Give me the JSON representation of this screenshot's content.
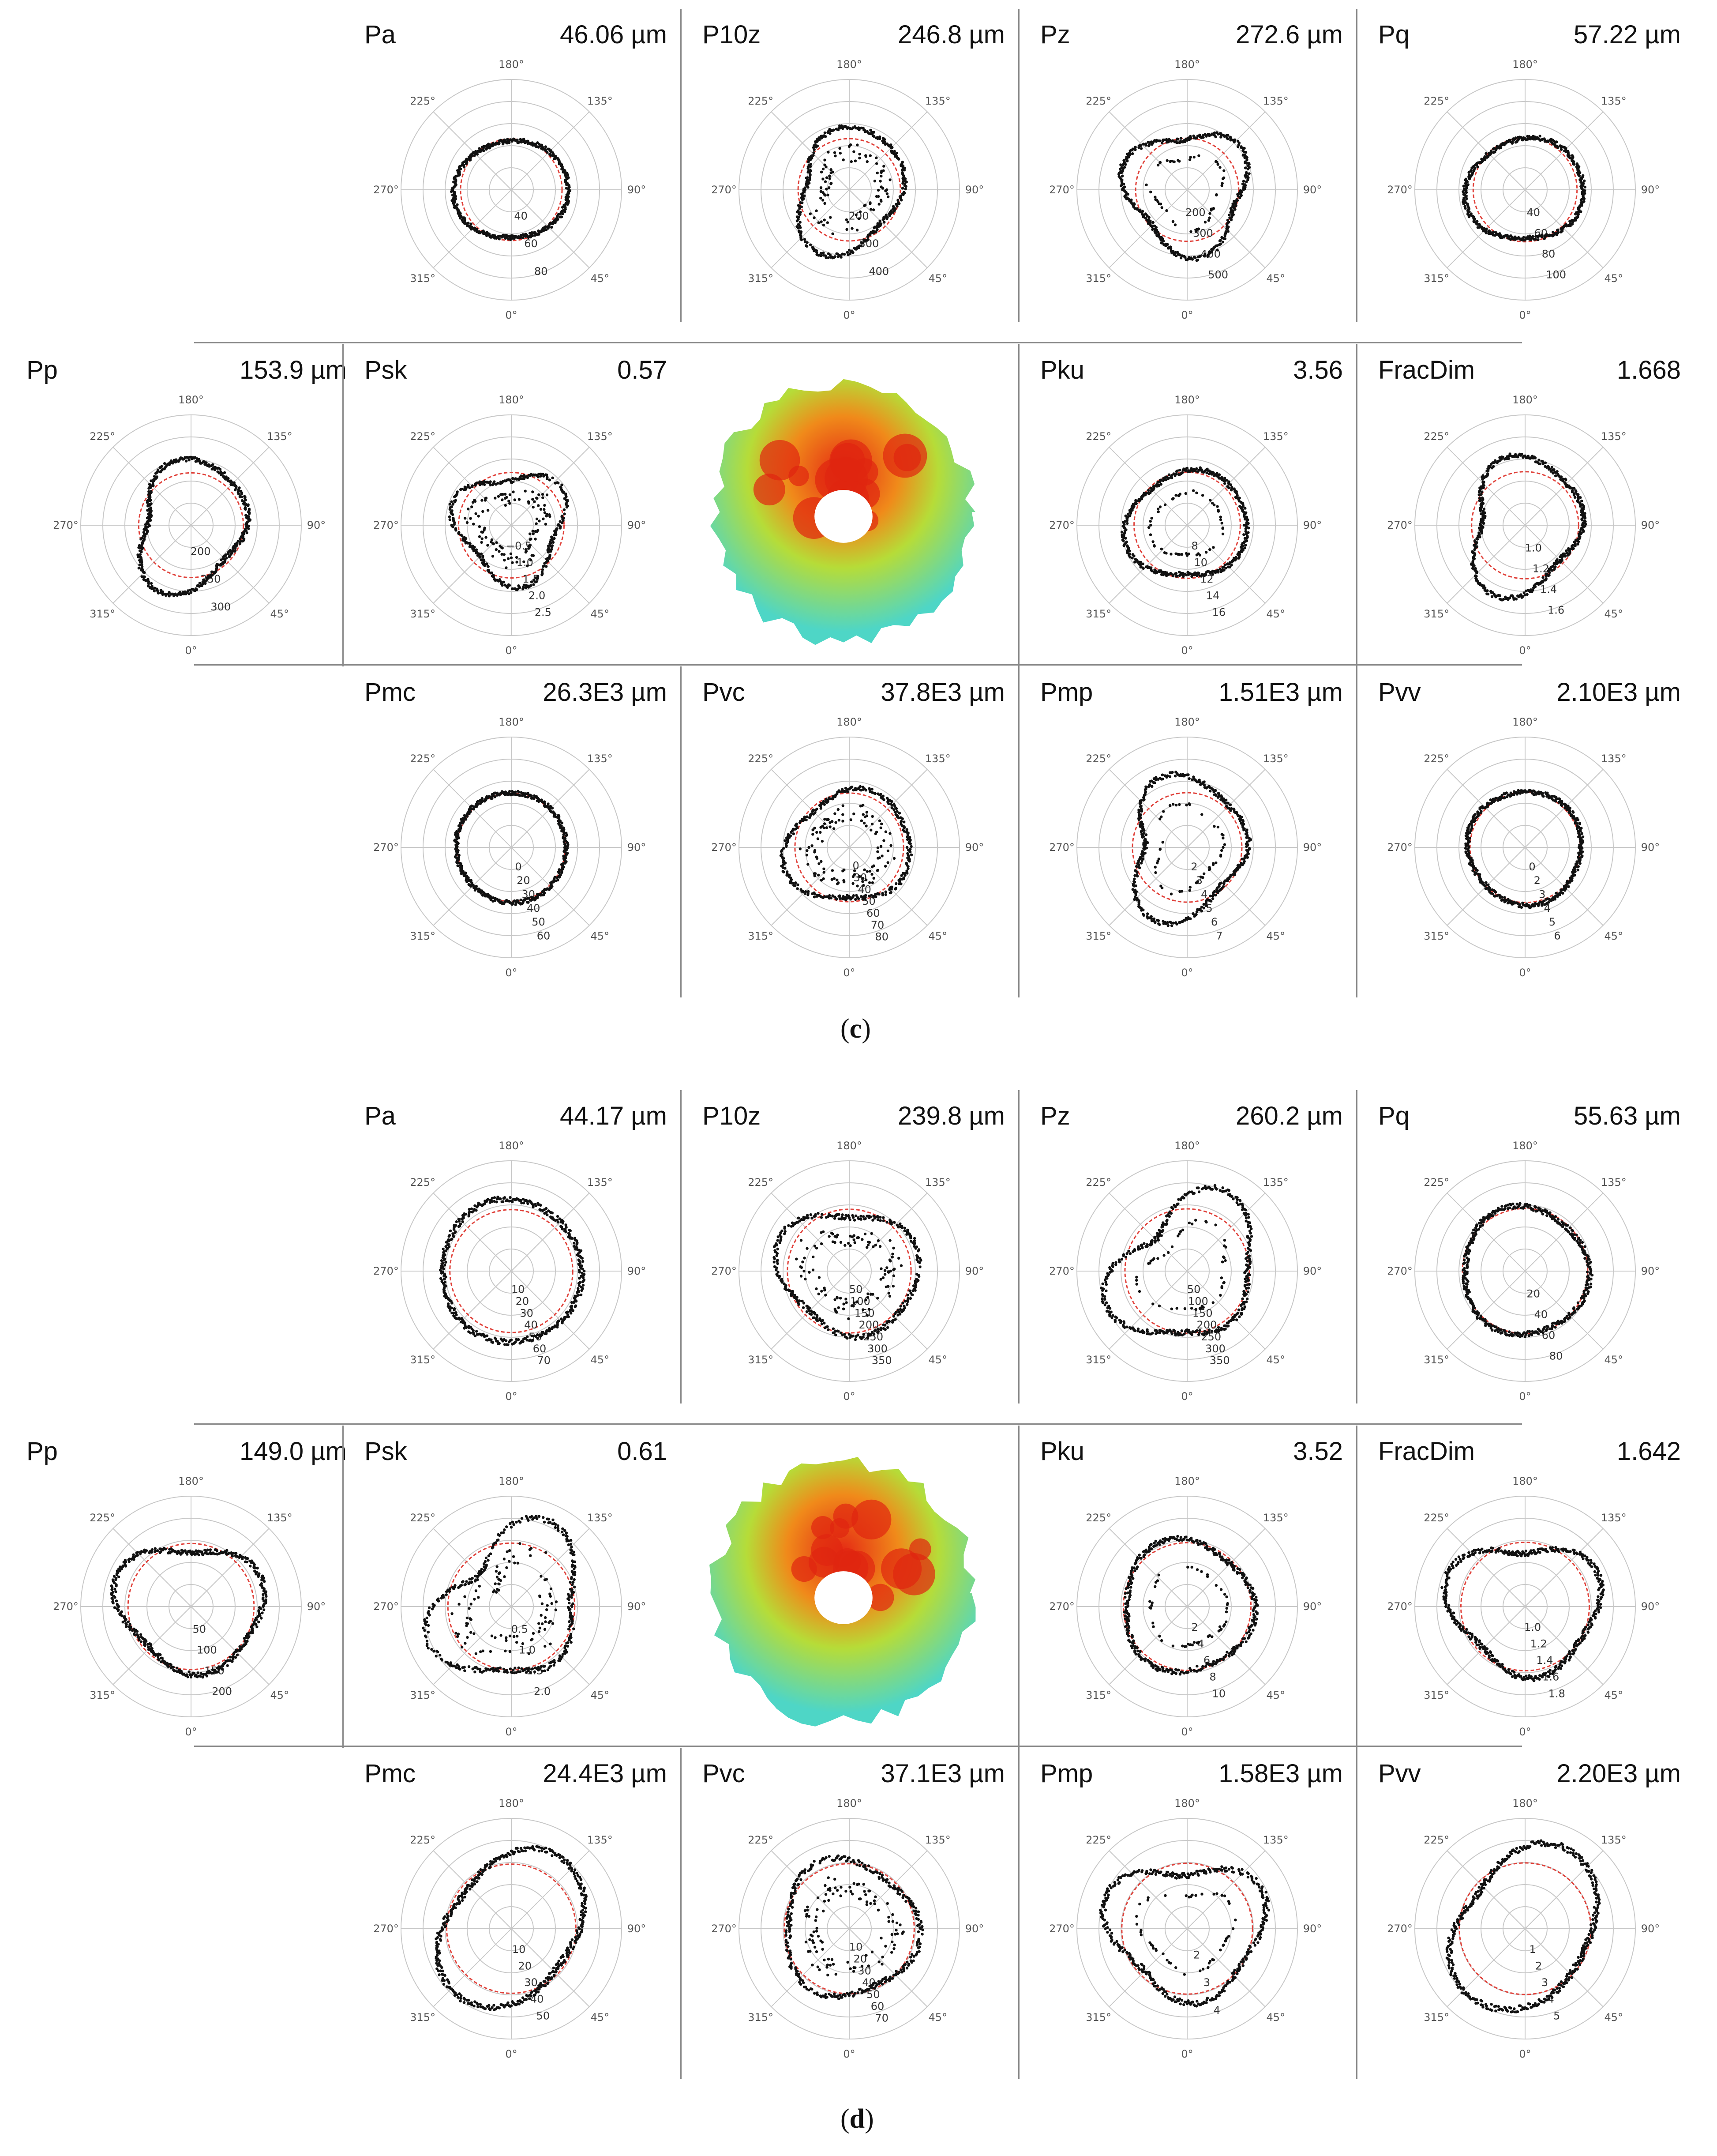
{
  "panels": [
    {
      "id": "c",
      "caption_letter": "c",
      "cells": [
        {
          "name": "Pa",
          "value": "46.06 µm",
          "rings": [
            "40",
            "60",
            "80"
          ]
        },
        {
          "name": "P10z",
          "value": "246.8 µm",
          "rings": [
            "200",
            "300",
            "400"
          ]
        },
        {
          "name": "Pz",
          "value": "272.6 µm",
          "rings": [
            "200",
            "300",
            "400",
            "500"
          ]
        },
        {
          "name": "Pq",
          "value": "57.22 µm",
          "rings": [
            "40",
            "60",
            "80",
            "100"
          ]
        },
        {
          "name": "Pp",
          "value": "153.9 µm",
          "rings": [
            "200",
            "250",
            "300"
          ]
        },
        {
          "name": "Psk",
          "value": "0.57",
          "rings": [
            "−0.5",
            "1.0",
            "1.5",
            "2.0",
            "2.5"
          ]
        },
        {
          "name": "Pku",
          "value": "3.56",
          "rings": [
            "8",
            "10",
            "12",
            "14",
            "16"
          ]
        },
        {
          "name": "FracDim",
          "value": "1.668",
          "rings": [
            "1.0",
            "1.2",
            "1.4",
            "1.6"
          ]
        },
        {
          "name": "Pmc",
          "value": "26.3E3 µm",
          "rings": [
            "0",
            "20",
            "30",
            "40",
            "50",
            "60"
          ]
        },
        {
          "name": "Pvc",
          "value": "37.8E3 µm",
          "rings": [
            "0",
            "30",
            "40",
            "50",
            "60",
            "70",
            "80"
          ]
        },
        {
          "name": "Pmp",
          "value": "1.51E3 µm",
          "rings": [
            "2",
            "3",
            "4",
            "5",
            "6",
            "7"
          ]
        },
        {
          "name": "Pvv",
          "value": "2.10E3 µm",
          "rings": [
            "0",
            "2",
            "3",
            "4",
            "5",
            "6"
          ]
        }
      ]
    },
    {
      "id": "d",
      "caption_letter": "d",
      "cells": [
        {
          "name": "Pa",
          "value": "44.17 µm",
          "rings": [
            "10",
            "20",
            "30",
            "40",
            "50",
            "60",
            "70"
          ]
        },
        {
          "name": "P10z",
          "value": "239.8 µm",
          "rings": [
            "50",
            "100",
            "150",
            "200",
            "250",
            "300",
            "350"
          ]
        },
        {
          "name": "Pz",
          "value": "260.2 µm",
          "rings": [
            "50",
            "100",
            "150",
            "200",
            "250",
            "300",
            "350"
          ]
        },
        {
          "name": "Pq",
          "value": "55.63 µm",
          "rings": [
            "20",
            "40",
            "60",
            "80"
          ]
        },
        {
          "name": "Pp",
          "value": "149.0 µm",
          "rings": [
            "50",
            "100",
            "150",
            "200"
          ]
        },
        {
          "name": "Psk",
          "value": "0.61",
          "rings": [
            "0.5",
            "1.0",
            "1.5",
            "2.0"
          ]
        },
        {
          "name": "Pku",
          "value": "3.52",
          "rings": [
            "2",
            "4",
            "6",
            "8",
            "10"
          ]
        },
        {
          "name": "FracDim",
          "value": "1.642",
          "rings": [
            "1.0",
            "1.2",
            "1.4",
            "1.6",
            "1.8"
          ]
        },
        {
          "name": "Pmc",
          "value": "24.4E3 µm",
          "rings": [
            "10",
            "20",
            "30",
            "40",
            "50"
          ]
        },
        {
          "name": "Pvc",
          "value": "37.1E3 µm",
          "rings": [
            "10",
            "20",
            "30",
            "40",
            "50",
            "60",
            "70"
          ]
        },
        {
          "name": "Pmp",
          "value": "1.58E3 µm",
          "rings": [
            "2",
            "3",
            "4"
          ]
        },
        {
          "name": "Pvv",
          "value": "2.20E3 µm",
          "rings": [
            "1",
            "2",
            "3",
            "4",
            "5"
          ]
        }
      ]
    }
  ],
  "angle_labels": [
    "180°",
    "135°",
    "90°",
    "45°",
    "0°",
    "315°",
    "270°",
    "225°"
  ],
  "chart_data": {
    "type": "scatter",
    "subtype": "polar",
    "title": "",
    "theta_ticks_deg": [
      0,
      45,
      90,
      135,
      180,
      225,
      270,
      315
    ],
    "theta_zero": "bottom",
    "panels": [
      "c",
      "d"
    ],
    "colors": {
      "profile": "#111111",
      "reference_circle": "#e0413a",
      "grid": "#c8c8c8"
    }
  }
}
